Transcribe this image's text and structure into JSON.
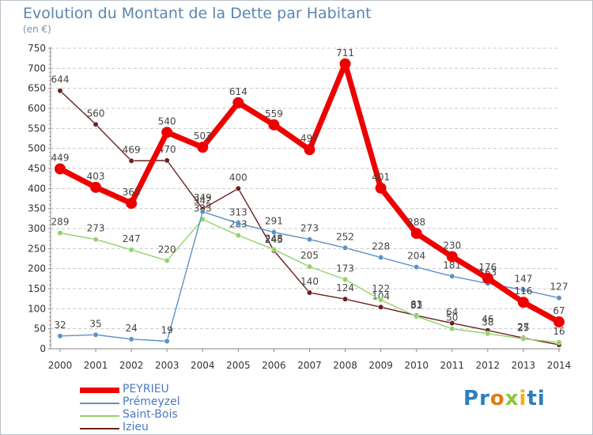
{
  "header": {
    "title": "Evolution du Montant de la Dette par Habitant",
    "unit": "(en €)"
  },
  "colors": {
    "PEYRIEU": "#ee0000",
    "Prémeyzel": "#5b92c6",
    "Saint-Bois": "#8fd469",
    "Izieu": "#6d1f1f",
    "axis": "#888888",
    "grid": "#c8c8c8"
  },
  "logo": {
    "text": "Proxiti"
  },
  "chart_data": {
    "type": "line",
    "title": "Evolution du Montant de la Dette par Habitant",
    "ylabel": "(en €)",
    "xlabel": "",
    "categories": [
      "2000",
      "2001",
      "2002",
      "2003",
      "2004",
      "2005",
      "2006",
      "2007",
      "2008",
      "2009",
      "2010",
      "2011",
      "2012",
      "2013",
      "2014"
    ],
    "yticks": [
      0,
      50,
      100,
      150,
      200,
      250,
      300,
      350,
      400,
      450,
      500,
      550,
      600,
      650,
      700,
      750
    ],
    "ylim": [
      0,
      750
    ],
    "grid": "horizontal dashed",
    "legend": "bottom-left",
    "series": [
      {
        "name": "Izieu",
        "values": [
          644,
          560,
          469,
          470,
          349,
          400,
          245,
          140,
          124,
          104,
          83,
          64,
          46,
          27,
          10
        ],
        "labels": [
          "644",
          "560",
          "469",
          "470",
          "349",
          "400",
          "245",
          "140",
          "124",
          "104",
          "83",
          "64",
          "46",
          "27",
          ""
        ]
      },
      {
        "name": "Saint-Bois",
        "values": [
          289,
          273,
          247,
          220,
          323,
          283,
          248,
          205,
          173,
          122,
          81,
          50,
          38,
          25,
          16
        ],
        "labels": [
          "289",
          "273",
          "247",
          "220",
          "323",
          "283",
          "248",
          "205",
          "173",
          "122",
          "81",
          "50",
          "38",
          "25",
          "16"
        ]
      },
      {
        "name": "Prémeyzel",
        "values": [
          32,
          35,
          24,
          19,
          342,
          313,
          291,
          273,
          252,
          228,
          204,
          181,
          163,
          147,
          127
        ],
        "labels": [
          "32",
          "35",
          "24",
          "19",
          "342",
          "313",
          "291",
          "273",
          "252",
          "228",
          "204",
          "181",
          "163",
          "147",
          "127"
        ]
      },
      {
        "name": "PEYRIEU",
        "values": [
          449,
          403,
          363,
          540,
          503,
          614,
          559,
          497,
          711,
          401,
          288,
          230,
          176,
          116,
          67
        ],
        "labels": [
          "449",
          "403",
          "363",
          "540",
          "503",
          "614",
          "559",
          "497",
          "711",
          "401",
          "288",
          "230",
          "176",
          "116",
          "67"
        ]
      }
    ]
  }
}
